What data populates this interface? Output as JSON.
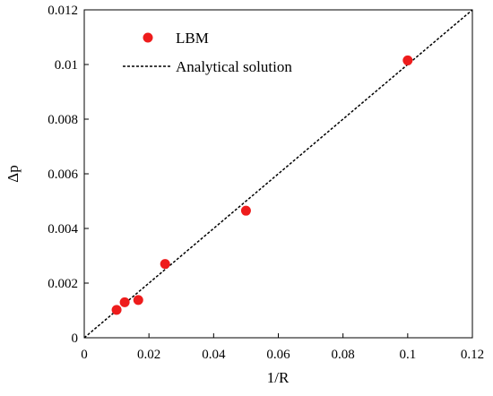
{
  "chart_data": {
    "type": "scatter",
    "title": "",
    "xlabel": "1/R",
    "ylabel": "Δp",
    "xlim": [
      0,
      0.12
    ],
    "ylim": [
      0,
      0.012
    ],
    "x_ticks": [
      "0",
      "0.02",
      "0.04",
      "0.06",
      "0.08",
      "0.1",
      "0.12"
    ],
    "y_ticks": [
      "0",
      "0.002",
      "0.004",
      "0.006",
      "0.008",
      "0.01",
      "0.012"
    ],
    "grid": false,
    "legend_position": "top-left",
    "series": [
      {
        "name": "LBM",
        "kind": "markers",
        "color": "#ee1c1c",
        "points": [
          {
            "x": 0.01,
            "y": 0.00102
          },
          {
            "x": 0.0125,
            "y": 0.0013
          },
          {
            "x": 0.0167,
            "y": 0.00138
          },
          {
            "x": 0.025,
            "y": 0.0027
          },
          {
            "x": 0.05,
            "y": 0.00465
          },
          {
            "x": 0.1,
            "y": 0.01015
          }
        ]
      },
      {
        "name": "Analytical solution",
        "kind": "dashed-line",
        "color": "#000000",
        "points": [
          {
            "x": 0,
            "y": 0
          },
          {
            "x": 0.12,
            "y": 0.012
          }
        ]
      }
    ]
  }
}
